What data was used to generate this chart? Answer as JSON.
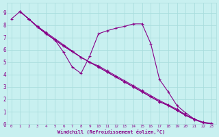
{
  "background_color": "#c8f0f0",
  "line_color": "#880088",
  "grid_color": "#aadddd",
  "xlabel": "Windchill (Refroidissement éolien,°C)",
  "xlabel_color": "#880088",
  "xlim": [
    -0.5,
    23.5
  ],
  "ylim": [
    0,
    9.8
  ],
  "yticks": [
    0,
    1,
    2,
    3,
    4,
    5,
    6,
    7,
    8,
    9
  ],
  "xticks": [
    0,
    1,
    2,
    3,
    4,
    5,
    6,
    7,
    8,
    9,
    10,
    11,
    12,
    13,
    14,
    15,
    16,
    17,
    18,
    19,
    20,
    21,
    22,
    23
  ],
  "series": [
    {
      "x": [
        0,
        1,
        2,
        3,
        4,
        5,
        6,
        7,
        8,
        9,
        10,
        11,
        12,
        13,
        14,
        15,
        16,
        17,
        18,
        19,
        20,
        21,
        22,
        23
      ],
      "y": [
        8.5,
        9.1,
        8.5,
        7.9,
        7.4,
        6.9,
        6.4,
        5.9,
        5.4,
        5.0,
        4.6,
        4.2,
        3.8,
        3.4,
        3.0,
        2.6,
        2.2,
        1.8,
        1.5,
        1.1,
        0.7,
        0.4,
        0.15,
        0.05
      ]
    },
    {
      "x": [
        1,
        2,
        3,
        4,
        5,
        6,
        7,
        8,
        9,
        10,
        11,
        12,
        13,
        14,
        15,
        16,
        17,
        18,
        19,
        20,
        21,
        22,
        23
      ],
      "y": [
        9.1,
        8.5,
        7.85,
        7.3,
        6.8,
        6.3,
        5.85,
        5.4,
        5.0,
        4.6,
        4.2,
        3.8,
        3.4,
        3.0,
        2.6,
        2.2,
        1.8,
        1.5,
        1.1,
        0.7,
        0.35,
        0.1,
        0.02
      ]
    },
    {
      "x": [
        1,
        2,
        3,
        4,
        5,
        6,
        7,
        8,
        9,
        10,
        11,
        12,
        13,
        14,
        15,
        16,
        17,
        18,
        19,
        20,
        21,
        22,
        23
      ],
      "y": [
        9.1,
        8.5,
        7.85,
        7.3,
        6.8,
        5.8,
        4.6,
        4.1,
        5.5,
        7.3,
        7.55,
        7.75,
        7.9,
        8.1,
        8.1,
        6.5,
        3.6,
        2.6,
        1.5,
        0.9,
        0.4,
        0.1,
        0.02
      ]
    },
    {
      "x": [
        1,
        2,
        3,
        4,
        5,
        6,
        7,
        8,
        9,
        10,
        11,
        12,
        13,
        14,
        15,
        16,
        17,
        18,
        19,
        20,
        21,
        22,
        23
      ],
      "y": [
        9.1,
        8.5,
        7.85,
        7.3,
        6.8,
        6.3,
        5.85,
        5.4,
        5.0,
        4.7,
        4.3,
        3.9,
        3.5,
        3.1,
        2.7,
        2.3,
        1.9,
        1.55,
        1.2,
        0.75,
        0.4,
        0.12,
        0.03
      ]
    }
  ]
}
